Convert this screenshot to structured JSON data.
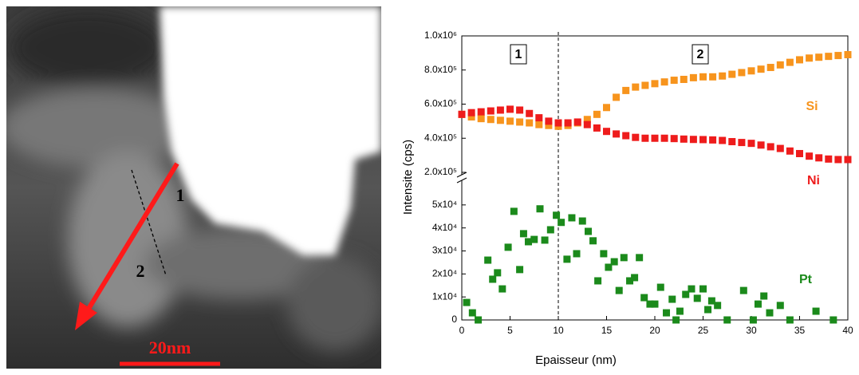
{
  "image": {
    "labels": [
      "1",
      "2"
    ],
    "scale_bar": "20nm"
  },
  "chart_data": {
    "type": "scatter",
    "x_label": "Epaisseur (nm)",
    "y_label": "Intensite (cps)",
    "region_labels": [
      "1",
      "2"
    ],
    "divider_x": 10,
    "xlim": [
      0,
      40
    ],
    "xticks": [
      0,
      5,
      10,
      15,
      20,
      25,
      30,
      35,
      40
    ],
    "ylim": [
      200000,
      1000000
    ],
    "yticks": [
      {
        "value": 200000,
        "label": "2.0x10⁵"
      },
      {
        "value": 400000,
        "label": "4.0x10⁵"
      },
      {
        "value": 600000,
        "label": "6.0x10⁵"
      },
      {
        "value": 800000,
        "label": "8.0x10⁵"
      },
      {
        "value": 1000000,
        "label": "1.0x10⁶"
      }
    ],
    "y2lim": [
      0,
      60000
    ],
    "y2ticks": [
      0,
      {
        "value": 10000,
        "label": "1x10⁴"
      },
      {
        "value": 20000,
        "label": "2x10⁴"
      },
      {
        "value": 30000,
        "label": "3x10⁴"
      },
      {
        "value": 40000,
        "label": "4x10⁴"
      },
      {
        "value": 50000,
        "label": "5x10⁴"
      }
    ],
    "series": [
      {
        "name": "Si",
        "color": "#f7941d",
        "axis": "y",
        "x": [
          0,
          1,
          2,
          3,
          4,
          5,
          6,
          7,
          8,
          9,
          10,
          11,
          12,
          13,
          14,
          15,
          16,
          17,
          18,
          19,
          20,
          21,
          22,
          23,
          24,
          25,
          26,
          27,
          28,
          29,
          30,
          31,
          32,
          33,
          34,
          35,
          36,
          37,
          38,
          39,
          40
        ],
        "values": [
          540000,
          525000,
          515000,
          510000,
          505000,
          500000,
          495000,
          490000,
          480000,
          475000,
          470000,
          475000,
          490000,
          510000,
          540000,
          580000,
          640000,
          680000,
          700000,
          710000,
          720000,
          730000,
          740000,
          745000,
          755000,
          760000,
          760000,
          765000,
          775000,
          785000,
          795000,
          805000,
          815000,
          830000,
          845000,
          860000,
          870000,
          875000,
          880000,
          885000,
          890000
        ]
      },
      {
        "name": "Ni",
        "color": "#ee1c1c",
        "axis": "y",
        "x": [
          0,
          1,
          2,
          3,
          4,
          5,
          6,
          7,
          8,
          9,
          10,
          11,
          12,
          13,
          14,
          15,
          16,
          17,
          18,
          19,
          20,
          21,
          22,
          23,
          24,
          25,
          26,
          27,
          28,
          29,
          30,
          31,
          32,
          33,
          34,
          35,
          36,
          37,
          38,
          39,
          40
        ],
        "values": [
          540000,
          550000,
          555000,
          560000,
          565000,
          570000,
          565000,
          545000,
          520000,
          500000,
          490000,
          490000,
          495000,
          480000,
          460000,
          440000,
          425000,
          415000,
          405000,
          400000,
          400000,
          400000,
          398000,
          395000,
          393000,
          392000,
          390000,
          387000,
          380000,
          375000,
          370000,
          360000,
          350000,
          340000,
          325000,
          310000,
          295000,
          285000,
          278000,
          275000,
          275000
        ]
      },
      {
        "name": "Pt",
        "color": "#1b8a1b",
        "axis": "y2",
        "x": [
          0.5,
          1.1,
          1.7,
          2.7,
          3.2,
          3.7,
          4.2,
          4.8,
          5.4,
          6.0,
          6.4,
          6.9,
          7.5,
          8.1,
          8.6,
          9.2,
          9.8,
          10.3,
          10.9,
          11.4,
          11.9,
          12.5,
          13.1,
          13.6,
          14.1,
          14.7,
          15.2,
          15.8,
          16.3,
          16.8,
          17.4,
          17.9,
          18.4,
          18.9,
          19.5,
          20.0,
          20.6,
          21.2,
          21.8,
          22.2,
          22.6,
          23.2,
          23.8,
          24.4,
          25.0,
          25.5,
          25.9,
          26.5,
          27.5,
          29.2,
          30.2,
          30.7,
          31.3,
          31.9,
          33.0,
          34.0,
          36.7,
          38.5
        ],
        "values": [
          7600,
          3100,
          0,
          26000,
          17700,
          20500,
          13500,
          31600,
          47200,
          21900,
          37500,
          34000,
          35000,
          48300,
          34700,
          39200,
          45500,
          42400,
          26400,
          44400,
          28800,
          43000,
          38500,
          34400,
          17000,
          28800,
          22900,
          25300,
          12800,
          27100,
          17000,
          18400,
          27100,
          9700,
          6900,
          6900,
          14200,
          3100,
          9000,
          0,
          3800,
          11100,
          13500,
          9400,
          13500,
          4500,
          8300,
          6300,
          0,
          12800,
          0,
          6900,
          10400,
          3100,
          6300,
          0,
          3800,
          0
        ]
      }
    ]
  }
}
